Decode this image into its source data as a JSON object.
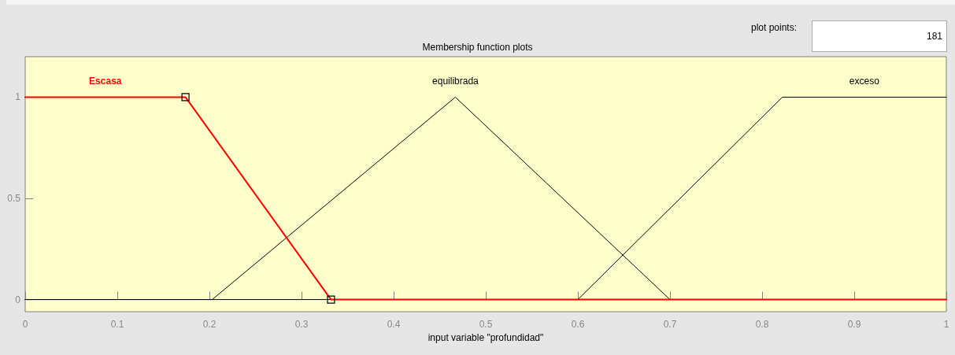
{
  "chart_data": {
    "type": "line",
    "title": "Membership function plots",
    "xlabel": "input variable \"profundidad\"",
    "annotations": [
      "plot points:",
      "181"
    ],
    "xlim": [
      0,
      1
    ],
    "xticks": [
      0,
      0.1,
      0.2,
      0.3,
      0.4,
      0.5,
      0.6,
      0.7,
      0.8,
      0.9,
      1
    ],
    "ylim": [
      -0.06,
      1.2
    ],
    "yticks": [
      0,
      0.5,
      1
    ],
    "grid": false,
    "legend": false,
    "series": [
      {
        "name": "Escasa",
        "color": "#ff0000",
        "marker": "square",
        "x": [
          0,
          0.174,
          0.332,
          1
        ],
        "values": [
          1,
          1,
          0,
          0
        ]
      },
      {
        "name": "equilibrada",
        "color": "#000000",
        "x": [
          0,
          0.203,
          0.467,
          0.7,
          1
        ],
        "values": [
          0,
          0,
          1,
          0,
          0
        ]
      },
      {
        "name": "exceso",
        "color": "#000000",
        "x": [
          0,
          0.6,
          0.822,
          1
        ],
        "values": [
          0,
          0,
          1,
          1
        ]
      }
    ]
  }
}
